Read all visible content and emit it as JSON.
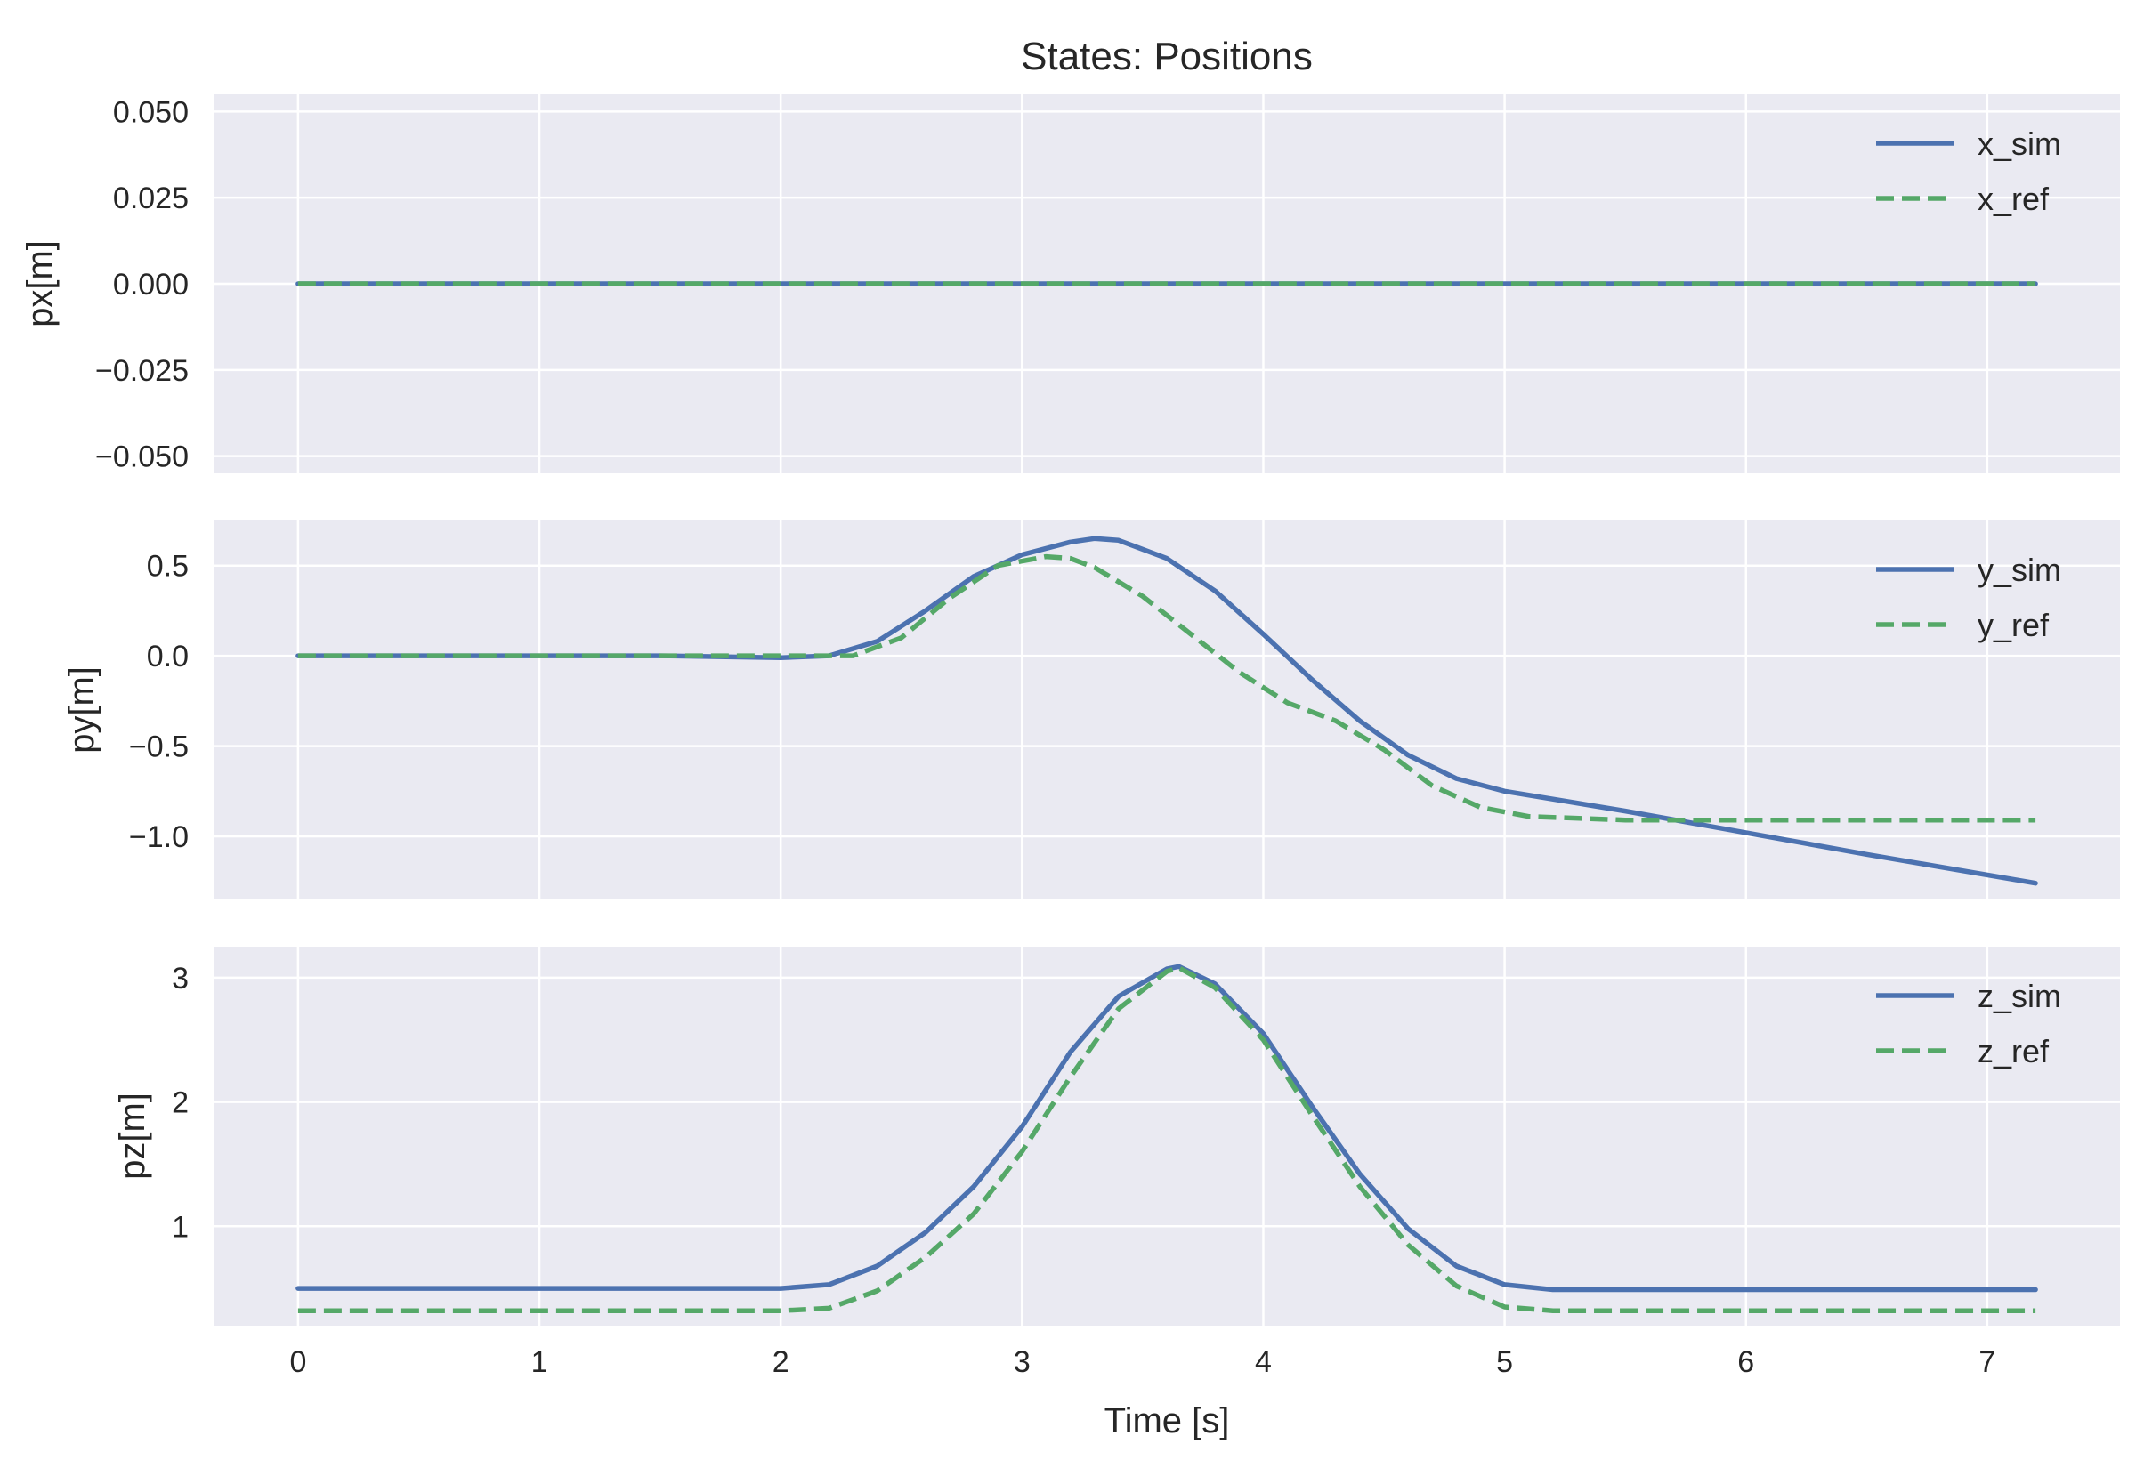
{
  "chart_data": {
    "type": "line",
    "title": "States: Positions",
    "xlabel": "Time [s]",
    "xlim": [
      -0.35,
      7.55
    ],
    "xticks": [
      0,
      1,
      2,
      3,
      4,
      5,
      6,
      7
    ],
    "grid": true,
    "legend_position": "top-right",
    "colors": {
      "sim": "#4C72B0",
      "ref": "#55A868",
      "background": "#EAEAF2",
      "grid": "#FFFFFF"
    },
    "subplots": [
      {
        "ylabel": "px[m]",
        "ylim": [
          -0.055,
          0.055
        ],
        "yticks": [
          -0.05,
          -0.025,
          0.0,
          0.025,
          0.05
        ],
        "ytick_labels": [
          "−0.050",
          "−0.025",
          "0.000",
          "0.025",
          "0.050"
        ],
        "series": [
          {
            "name": "x_sim",
            "style": "solid",
            "x": [
              0,
              1,
              2,
              3,
              4,
              5,
              6,
              7.2
            ],
            "y": [
              0,
              0,
              0,
              0,
              0,
              0,
              0,
              0
            ]
          },
          {
            "name": "x_ref",
            "style": "dashed",
            "x": [
              0,
              1,
              2,
              3,
              4,
              5,
              6,
              7.2
            ],
            "y": [
              0,
              0,
              0,
              0,
              0,
              0,
              0,
              0
            ]
          }
        ]
      },
      {
        "ylabel": "py[m]",
        "ylim": [
          -1.35,
          0.75
        ],
        "yticks": [
          -1.0,
          -0.5,
          0.0,
          0.5
        ],
        "ytick_labels": [
          "−1.0",
          "−0.5",
          "0.0",
          "0.5"
        ],
        "series": [
          {
            "name": "y_sim",
            "style": "solid",
            "x": [
              0,
              1.0,
              1.5,
              2.0,
              2.2,
              2.4,
              2.6,
              2.8,
              3.0,
              3.2,
              3.3,
              3.4,
              3.6,
              3.8,
              4.0,
              4.2,
              4.4,
              4.6,
              4.8,
              5.0,
              5.5,
              6.0,
              6.5,
              7.2
            ],
            "y": [
              0,
              0,
              0,
              -0.01,
              0.0,
              0.08,
              0.25,
              0.44,
              0.56,
              0.63,
              0.65,
              0.64,
              0.54,
              0.36,
              0.12,
              -0.13,
              -0.36,
              -0.55,
              -0.68,
              -0.75,
              -0.86,
              -0.98,
              -1.1,
              -1.26
            ]
          },
          {
            "name": "y_ref",
            "style": "dashed",
            "x": [
              0,
              1.0,
              2.0,
              2.3,
              2.5,
              2.7,
              2.9,
              3.1,
              3.2,
              3.3,
              3.5,
              3.7,
              3.9,
              4.1,
              4.3,
              4.5,
              4.7,
              4.9,
              5.1,
              5.5,
              6.0,
              7.2
            ],
            "y": [
              0,
              0,
              0,
              0.0,
              0.1,
              0.32,
              0.5,
              0.55,
              0.54,
              0.49,
              0.33,
              0.12,
              -0.09,
              -0.26,
              -0.36,
              -0.52,
              -0.72,
              -0.84,
              -0.89,
              -0.91,
              -0.91,
              -0.91
            ]
          }
        ]
      },
      {
        "ylabel": "pz[m]",
        "ylim": [
          0.2,
          3.25
        ],
        "yticks": [
          1,
          2,
          3
        ],
        "ytick_labels": [
          "1",
          "2",
          "3"
        ],
        "series": [
          {
            "name": "z_sim",
            "style": "solid",
            "x": [
              0,
              1.0,
              2.0,
              2.2,
              2.4,
              2.6,
              2.8,
              3.0,
              3.2,
              3.4,
              3.6,
              3.65,
              3.8,
              4.0,
              4.2,
              4.4,
              4.6,
              4.8,
              5.0,
              5.2,
              6.0,
              7.2
            ],
            "y": [
              0.5,
              0.5,
              0.5,
              0.53,
              0.68,
              0.95,
              1.32,
              1.8,
              2.4,
              2.85,
              3.07,
              3.09,
              2.95,
              2.55,
              1.97,
              1.42,
              0.98,
              0.68,
              0.53,
              0.49,
              0.49,
              0.49
            ]
          },
          {
            "name": "z_ref",
            "style": "dashed",
            "x": [
              0,
              1.0,
              2.0,
              2.2,
              2.4,
              2.6,
              2.8,
              3.0,
              3.2,
              3.4,
              3.6,
              3.65,
              3.8,
              4.0,
              4.2,
              4.4,
              4.6,
              4.8,
              5.0,
              5.2,
              6.0,
              7.2
            ],
            "y": [
              0.32,
              0.32,
              0.32,
              0.34,
              0.48,
              0.75,
              1.1,
              1.6,
              2.2,
              2.75,
              3.05,
              3.08,
              2.92,
              2.5,
              1.9,
              1.32,
              0.85,
              0.52,
              0.35,
              0.32,
              0.32,
              0.32
            ]
          }
        ]
      }
    ]
  }
}
